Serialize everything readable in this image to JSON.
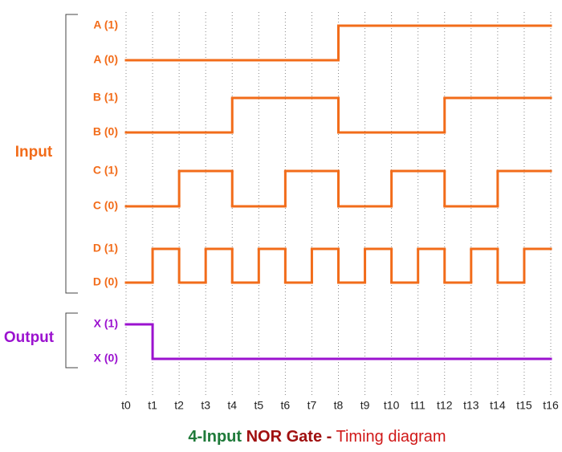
{
  "groups": [
    {
      "label": "Input",
      "color": "#f26c1a",
      "signals": [
        {
          "high_label": "A (1)",
          "low_label": "A (0)",
          "levels": [
            0,
            0,
            0,
            0,
            0,
            0,
            0,
            0,
            1,
            1,
            1,
            1,
            1,
            1,
            1,
            1
          ]
        },
        {
          "high_label": "B (1)",
          "low_label": "B (0)",
          "levels": [
            0,
            0,
            0,
            0,
            1,
            1,
            1,
            1,
            0,
            0,
            0,
            0,
            1,
            1,
            1,
            1
          ]
        },
        {
          "high_label": "C (1)",
          "low_label": "C (0)",
          "levels": [
            0,
            0,
            1,
            1,
            0,
            0,
            1,
            1,
            0,
            0,
            1,
            1,
            0,
            0,
            1,
            1
          ]
        },
        {
          "high_label": "D (1)",
          "low_label": "D (0)",
          "levels": [
            0,
            1,
            0,
            1,
            0,
            1,
            0,
            1,
            0,
            1,
            0,
            1,
            0,
            1,
            0,
            1
          ]
        }
      ]
    },
    {
      "label": "Output",
      "color": "#9b12cf",
      "signals": [
        {
          "high_label": "X (1)",
          "low_label": "X (0)",
          "levels": [
            1,
            0,
            0,
            0,
            0,
            0,
            0,
            0,
            0,
            0,
            0,
            0,
            0,
            0,
            0,
            0
          ]
        }
      ]
    }
  ],
  "time_labels": [
    "t0",
    "t1",
    "t2",
    "t3",
    "t4",
    "t5",
    "t6",
    "t7",
    "t8",
    "t9",
    "t10",
    "t11",
    "t12",
    "t13",
    "t14",
    "t15",
    "t16"
  ],
  "title": {
    "part1": "4-Input",
    "part2": "NOR Gate -",
    "part3": "Timing diagram"
  }
}
